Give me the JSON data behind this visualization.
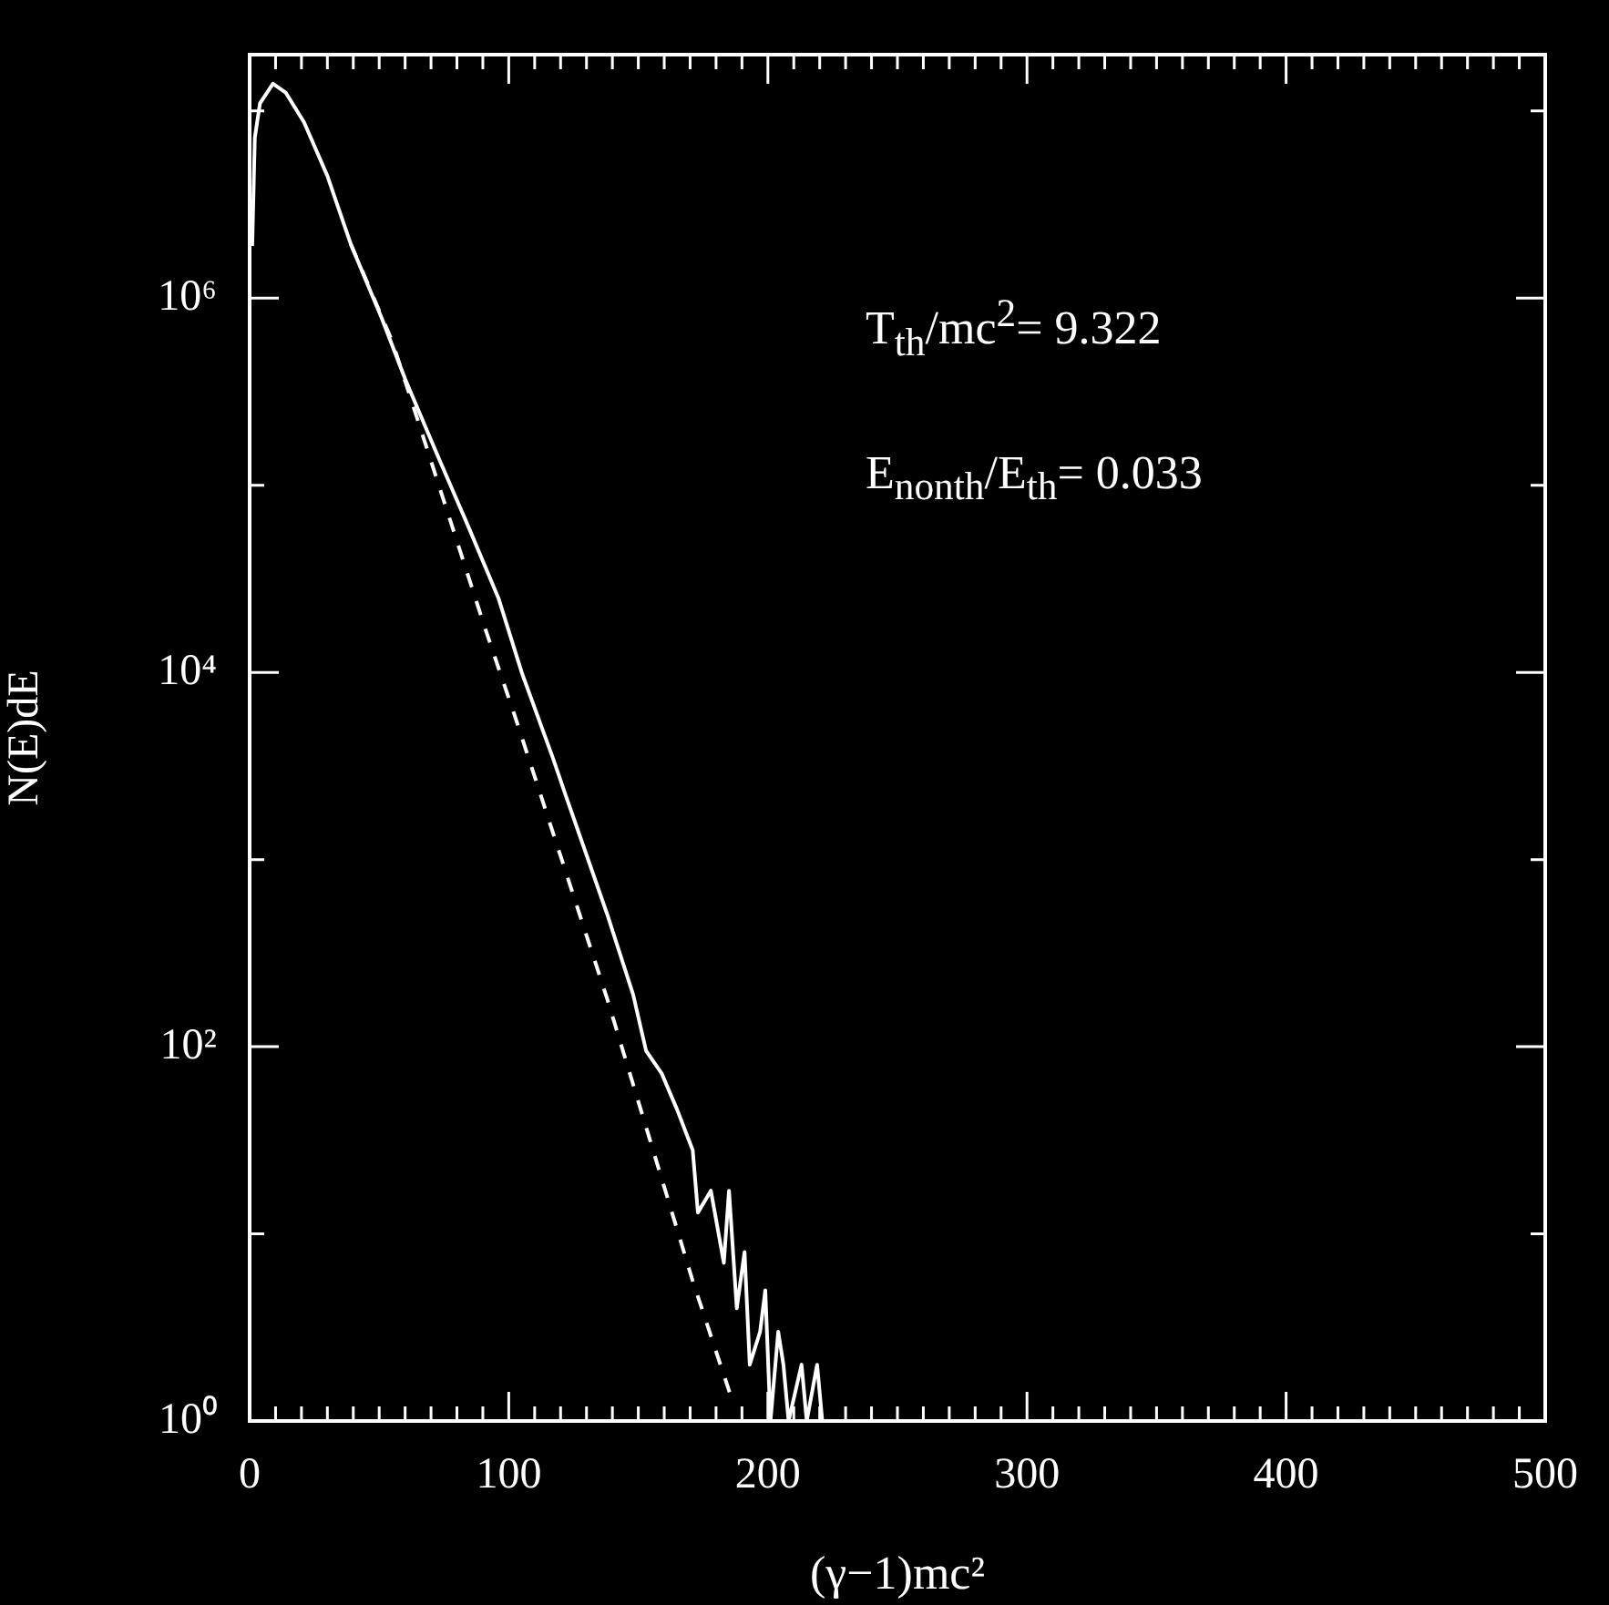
{
  "chart_data": {
    "type": "line",
    "xlabel": "(γ−1)mc²",
    "ylabel": "N(E)dE",
    "log": "y",
    "marker": "none",
    "legend": false,
    "xlim": [
      0,
      500
    ],
    "ylim": [
      1,
      20000000
    ],
    "xticks": [
      0,
      {
        "value": 10,
        "label": null
      },
      {
        "value": 20,
        "label": null
      },
      {
        "value": 30,
        "label": null
      },
      {
        "value": 40,
        "label": null
      },
      {
        "value": 50,
        "label": null
      },
      {
        "value": 60,
        "label": null
      },
      {
        "value": 70,
        "label": null
      },
      {
        "value": 80,
        "label": null
      },
      {
        "value": 90,
        "label": null
      },
      100,
      {
        "value": 110,
        "label": null
      },
      {
        "value": 120,
        "label": null
      },
      {
        "value": 130,
        "label": null
      },
      {
        "value": 140,
        "label": null
      },
      {
        "value": 150,
        "label": null
      },
      {
        "value": 160,
        "label": null
      },
      {
        "value": 170,
        "label": null
      },
      {
        "value": 180,
        "label": null
      },
      {
        "value": 190,
        "label": null
      },
      200,
      {
        "value": 210,
        "label": null
      },
      {
        "value": 220,
        "label": null
      },
      {
        "value": 230,
        "label": null
      },
      {
        "value": 240,
        "label": null
      },
      {
        "value": 250,
        "label": null
      },
      {
        "value": 260,
        "label": null
      },
      {
        "value": 270,
        "label": null
      },
      {
        "value": 280,
        "label": null
      },
      {
        "value": 290,
        "label": null
      },
      300,
      {
        "value": 310,
        "label": null
      },
      {
        "value": 320,
        "label": null
      },
      {
        "value": 330,
        "label": null
      },
      {
        "value": 340,
        "label": null
      },
      {
        "value": 350,
        "label": null
      },
      {
        "value": 360,
        "label": null
      },
      {
        "value": 370,
        "label": null
      },
      {
        "value": 380,
        "label": null
      },
      {
        "value": 390,
        "label": null
      },
      400,
      {
        "value": 410,
        "label": null
      },
      {
        "value": 420,
        "label": null
      },
      {
        "value": 430,
        "label": null
      },
      {
        "value": 440,
        "label": null
      },
      {
        "value": 450,
        "label": null
      },
      {
        "value": 460,
        "label": null
      },
      {
        "value": 470,
        "label": null
      },
      {
        "value": 480,
        "label": null
      },
      {
        "value": 490,
        "label": null
      },
      500
    ],
    "yticks": [
      {
        "value": 1,
        "label": "10⁰"
      },
      {
        "value": 10,
        "label": null
      },
      {
        "value": 100,
        "label": "10²"
      },
      {
        "value": 1000,
        "label": null
      },
      {
        "value": 10000,
        "label": "10⁴"
      },
      {
        "value": 100000,
        "label": null
      },
      {
        "value": 1000000,
        "label": "10⁶"
      },
      {
        "value": 10000000,
        "label": null
      }
    ],
    "annotations": [
      "T$_{th}$/mc$^{2}$= 9.322",
      "E$_{nonth}$/E$_{th}$= 0.033"
    ],
    "series": [
      {
        "color": "#ffffff",
        "line_style": "dashed",
        "x": [
          39,
          55,
          91,
          103,
          138,
          171,
          187
        ],
        "values": [
          1950000,
          590000,
          17000,
          5500,
          180,
          5.6,
          1.2
        ]
      },
      {
        "color": "#ffffff",
        "line_style": "solid",
        "x": [
          1,
          2,
          4,
          9,
          14,
          21,
          30,
          39,
          51,
          60,
          72,
          84,
          96,
          105,
          117,
          122,
          138,
          148,
          153,
          159,
          165,
          171,
          173,
          178,
          183,
          185,
          188,
          191,
          193,
          197,
          199,
          201,
          204,
          206,
          208,
          213,
          215,
          219,
          221
        ],
        "values": [
          1900000,
          7200000,
          11000000,
          14000000,
          12500000,
          8700000,
          4500000,
          1950000,
          780000,
          370000,
          150000,
          62000,
          25000,
          10000,
          3500,
          2200,
          510,
          190,
          95,
          72,
          46,
          28,
          13,
          17,
          7,
          17,
          4,
          8,
          2,
          3,
          5,
          1,
          3,
          2,
          1,
          2,
          1,
          2,
          1
        ]
      }
    ]
  }
}
